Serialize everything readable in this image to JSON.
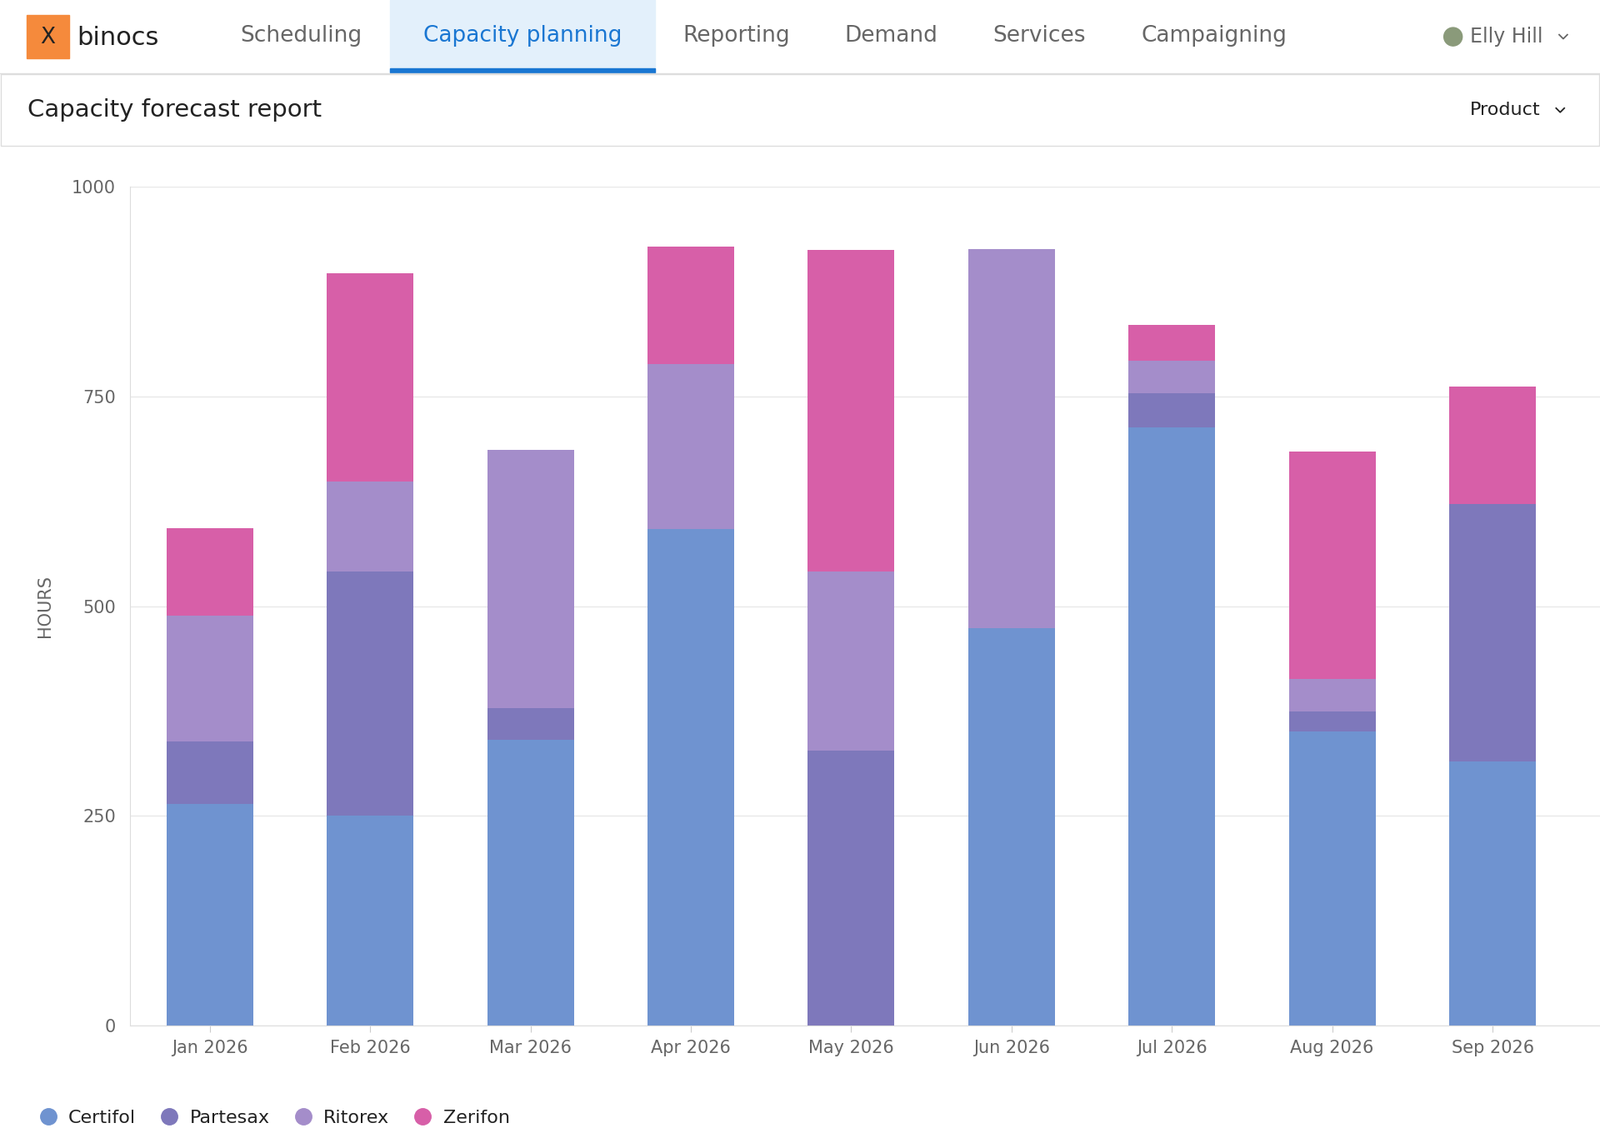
{
  "header": {
    "logo_mark": "X",
    "logo": "binocs",
    "tabs": [
      "Scheduling",
      "Capacity planning",
      "Reporting",
      "Demand",
      "Services",
      "Campaigning"
    ],
    "selected_tab": 1,
    "user": "Elly Hill"
  },
  "report": {
    "title": "Capacity forecast report",
    "filter": "Product"
  },
  "chart_data": {
    "type": "bar",
    "stacked": true,
    "grid": true,
    "legend": "lower left",
    "y_label": "HOURS",
    "categories": [
      "Jan 2026",
      "Feb 2026",
      "Mar 2026",
      "Apr 2026",
      "May 2026",
      "Jun 2026",
      "Jul 2026",
      "Aug 2026",
      "Sep 2026"
    ],
    "ylim": [
      0,
      1000
    ],
    "yticks": [
      0,
      250,
      500,
      750,
      1000
    ],
    "series": [
      {
        "name": "Certifol",
        "color": "#6f93d0",
        "values": [
          264,
          250,
          341,
          592,
          0,
          474,
          713,
          351,
          315
        ]
      },
      {
        "name": "Partesax",
        "color": "#7e78bb",
        "values": [
          75,
          291,
          37,
          0,
          328,
          0,
          41,
          24,
          307
        ]
      },
      {
        "name": "Ritorex",
        "color": "#a48dca",
        "values": [
          150,
          108,
          308,
          197,
          213,
          452,
          39,
          38,
          0
        ]
      },
      {
        "name": "Zerifon",
        "color": "#d75fa8",
        "values": [
          104,
          248,
          0,
          140,
          384,
          0,
          42,
          271,
          140
        ]
      }
    ]
  }
}
